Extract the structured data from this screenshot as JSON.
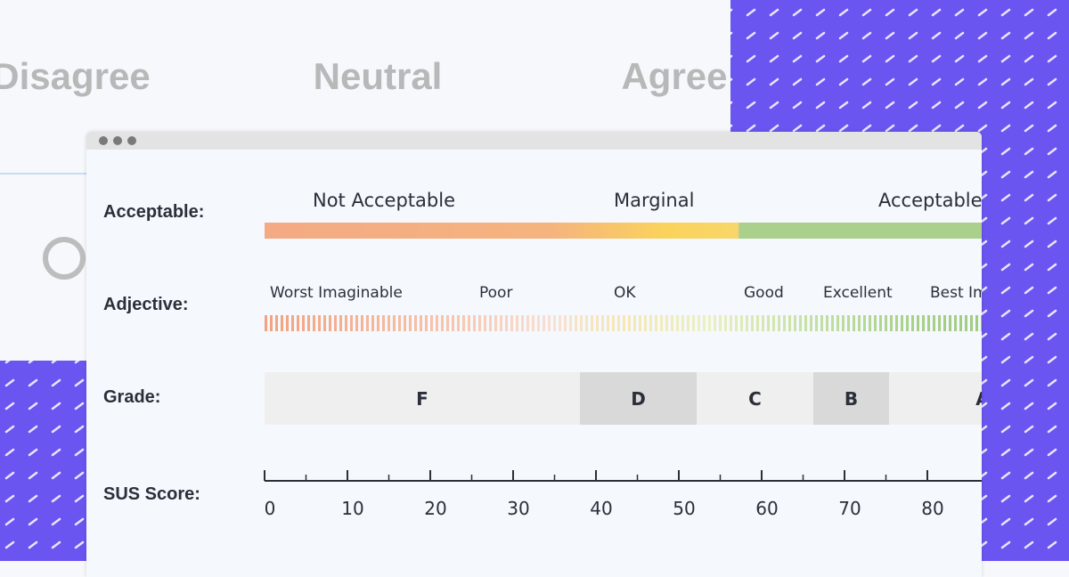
{
  "background": {
    "labels": [
      "Disagree",
      "Neutral",
      "Agree"
    ]
  },
  "window": {
    "acceptable": {
      "label": "Acceptable:",
      "ranges": [
        "Not Acceptable",
        "Marginal",
        "Acceptable"
      ]
    },
    "adjective": {
      "label": "Adjective:",
      "levels": [
        "Worst Imaginable",
        "Poor",
        "OK",
        "Good",
        "Excellent",
        "Best Imaginable"
      ]
    },
    "grade": {
      "label": "Grade:",
      "letters": [
        "F",
        "D",
        "C",
        "B",
        "A"
      ]
    },
    "sus_score": {
      "label": "SUS Score:",
      "xlim": [
        0,
        90
      ],
      "xticks": [
        0,
        10,
        20,
        30,
        40,
        50,
        60,
        70,
        80
      ]
    }
  }
}
